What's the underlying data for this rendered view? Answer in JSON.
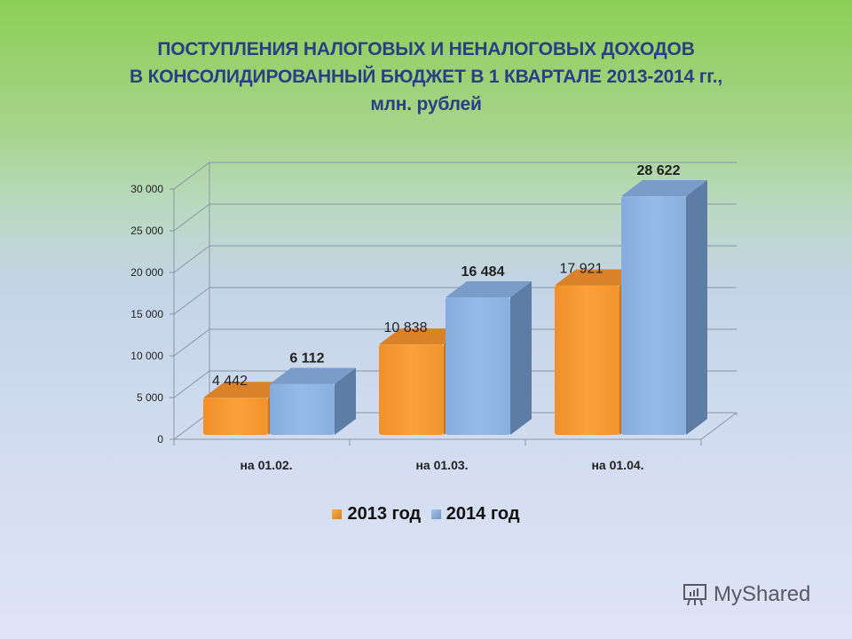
{
  "title": {
    "line1": "ПОСТУПЛЕНИЯ НАЛОГОВЫХ И НЕНАЛОГОВЫХ ДОХОДОВ",
    "line2": "В КОНСОЛИДИРОВАННЫЙ БЮДЖЕТ В 1 КВАРТАЛЕ 2013-2014 гг.,",
    "line3": "млн. рублей"
  },
  "legend": {
    "items": [
      {
        "label": "2013 год",
        "color": "#f39a2e"
      },
      {
        "label": "2014 год",
        "color": "#8db3e2"
      }
    ]
  },
  "watermark": {
    "text": "MyShared",
    "icon": "presentation-board-icon"
  },
  "colors": {
    "series2013": "#f39a2e",
    "series2014": "#8db3e2",
    "title": "#2b3f84"
  },
  "chart_data": {
    "type": "bar",
    "style": "3d-clustered-column",
    "title": "ПОСТУПЛЕНИЯ НАЛОГОВЫХ И НЕНАЛОГОВЫХ ДОХОДОВ В КОНСОЛИДИРОВАННЫЙ БЮДЖЕТ В 1 КВАРТАЛЕ 2013-2014 гг., млн. рублей",
    "categories": [
      "на 01.02.",
      "на 01.03.",
      "на 01.04."
    ],
    "series": [
      {
        "name": "2013 год",
        "values": [
          4442,
          10838,
          17921
        ],
        "labels": [
          "4 442",
          "10 838",
          "17 921"
        ],
        "label_bold": false
      },
      {
        "name": "2014 год",
        "values": [
          6112,
          16484,
          28622
        ],
        "labels": [
          "6 112",
          "16 484",
          "28 622"
        ],
        "label_bold": true
      }
    ],
    "xlabel": "",
    "ylabel": "",
    "ylim": [
      0,
      30000
    ],
    "yticks": [
      0,
      5000,
      10000,
      15000,
      20000,
      25000,
      30000
    ],
    "ytick_labels": [
      "0",
      "5 000",
      "10 000",
      "15 000",
      "20 000",
      "25 000",
      "30 000"
    ],
    "grid": true,
    "legend_position": "bottom"
  }
}
